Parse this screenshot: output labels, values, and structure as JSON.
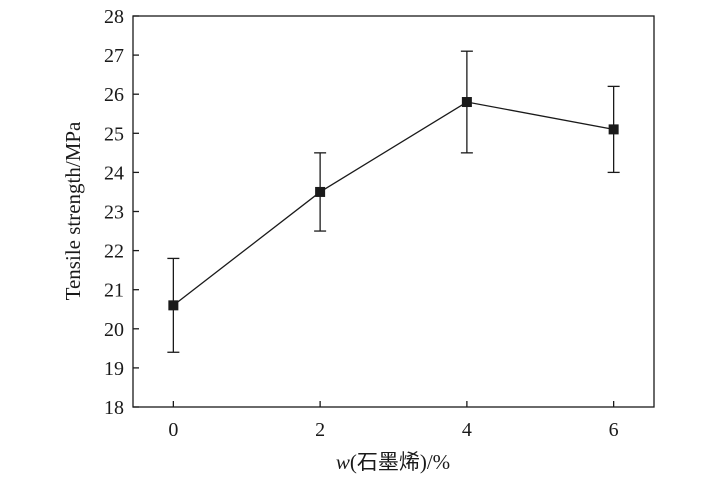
{
  "chart_data": {
    "type": "line",
    "title": "",
    "xlabel_var": "w",
    "xlabel_rest": "(石墨烯)/%",
    "ylabel": "Tensile strength/MPa",
    "xlim": [
      -0.55,
      6.55
    ],
    "ylim": [
      18,
      28
    ],
    "xticks": [
      0,
      2,
      4,
      6
    ],
    "yticks": [
      18,
      19,
      20,
      21,
      22,
      23,
      24,
      25,
      26,
      27,
      28
    ],
    "grid": false,
    "legend": false,
    "colors": {
      "line": "#1a1a1a",
      "marker": "#1a1a1a",
      "axis": "#1a1a1a"
    },
    "series": [
      {
        "x": [
          0,
          2,
          4,
          6
        ],
        "y": [
          20.6,
          23.5,
          25.8,
          25.1
        ],
        "err_low": [
          19.4,
          22.5,
          24.5,
          24.0
        ],
        "err_high": [
          21.8,
          24.5,
          27.1,
          26.2
        ],
        "marker": "square"
      }
    ]
  }
}
